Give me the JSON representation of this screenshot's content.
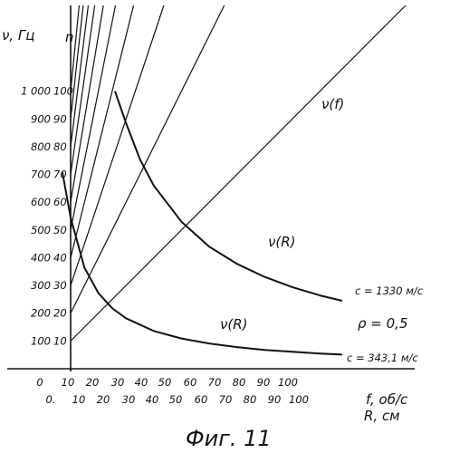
{
  "chart_data": {
    "type": "line",
    "caption": "Фиг. 11",
    "y_axis_left": {
      "label": "ν, Гц",
      "ticks": [
        "100",
        "200",
        "300",
        "400",
        "500",
        "600",
        "700",
        "800",
        "900",
        "1 000"
      ],
      "range": [
        0,
        1100
      ]
    },
    "y_axis_inner": {
      "label": "n",
      "ticks": [
        "10",
        "20",
        "30",
        "40",
        "50",
        "60",
        "70",
        "80",
        "90",
        "100"
      ],
      "range": [
        0,
        110
      ]
    },
    "x_axis_f": {
      "label": "f, об/с",
      "ticks": [
        "0",
        "10",
        "20",
        "30",
        "40",
        "50",
        "60",
        "70",
        "80",
        "90",
        "100"
      ]
    },
    "x_axis_R": {
      "label": "R, см",
      "ticks": [
        "0.",
        "10",
        "20",
        "30",
        "40",
        "50",
        "60",
        "70",
        "80",
        "90",
        "100"
      ]
    },
    "series": [
      {
        "name": "ν(f)",
        "kind": "ray family",
        "n_values": [
          10,
          20,
          30,
          40,
          50,
          60,
          70,
          80,
          90,
          100
        ],
        "note": "ν = n·f"
      },
      {
        "name": "ν(R)",
        "label_extra": "c = 1330 м/с",
        "x": [
          26,
          30,
          35,
          40,
          50,
          60,
          70,
          80,
          90,
          100,
          108
        ],
        "y": [
          1000,
          885,
          755,
          660,
          530,
          440,
          378,
          331,
          294,
          264,
          245
        ]
      },
      {
        "name": "ν(R)",
        "label_extra": "c = 343,1 м/с",
        "x": [
          7,
          10,
          15,
          20,
          25,
          30,
          40,
          50,
          60,
          70,
          80,
          90,
          100,
          108
        ],
        "y": [
          710,
          545,
          364,
          273,
          218,
          182,
          136,
          109,
          91,
          78,
          68,
          61,
          55,
          51
        ]
      }
    ],
    "annotations": [
      "ρ = 0,5"
    ],
    "grid": false
  }
}
